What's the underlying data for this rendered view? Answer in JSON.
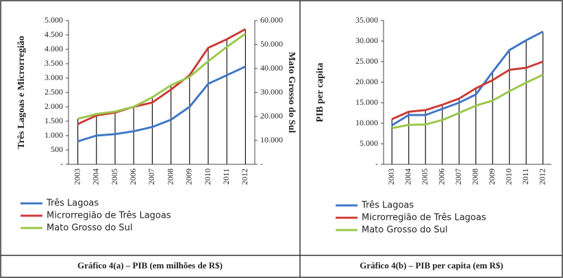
{
  "chart_data": [
    {
      "type": "line",
      "title": "Gráfico 4(a) – PIB (em milhões de R$)",
      "y_label": "Três Lagoas e Microrregião",
      "y2_label": "Mato Grosso do Sul",
      "categories": [
        "2003",
        "2004",
        "2005",
        "2006",
        "2007",
        "2008",
        "2009",
        "2010",
        "2011",
        "2012"
      ],
      "series": [
        {
          "name": "Três Lagoas",
          "color": "#3f76c6",
          "values": [
            800,
            1000,
            1050,
            1150,
            1300,
            1550,
            2000,
            2800,
            3100,
            3400
          ]
        },
        {
          "name": "Microrregião de Três Lagoas",
          "color": "#cc3a34",
          "values": [
            1400,
            1700,
            1800,
            2000,
            2150,
            2600,
            3100,
            4050,
            4350,
            4700
          ]
        },
        {
          "name": "Mato Grosso do Sul",
          "color": "#9ac74a",
          "axis": "y2",
          "values": [
            19000,
            21000,
            22000,
            24000,
            28000,
            33000,
            36500,
            43000,
            49000,
            54500
          ]
        }
      ],
      "ylim": [
        0,
        5000
      ],
      "yticks": [
        {
          "value": 0,
          "label": "-"
        },
        500,
        {
          "value": 1000,
          "label": "1.000"
        },
        {
          "value": 1500,
          "label": "1.500"
        },
        {
          "value": 2000,
          "label": "2.000"
        },
        {
          "value": 2500,
          "label": "2.500"
        },
        {
          "value": 3000,
          "label": "3.000"
        },
        {
          "value": 3500,
          "label": "3.500"
        },
        {
          "value": 4000,
          "label": "4.000"
        },
        {
          "value": 4500,
          "label": "4.500"
        },
        {
          "value": 5000,
          "label": "5.000"
        }
      ],
      "y2lim": [
        0,
        60000
      ],
      "y2ticks": [
        {
          "value": 0,
          "label": "-"
        },
        {
          "value": 10000,
          "label": "10.000"
        },
        {
          "value": 20000,
          "label": "20.000"
        },
        {
          "value": 30000,
          "label": "30.000"
        },
        {
          "value": 40000,
          "label": "40.000"
        },
        {
          "value": 50000,
          "label": "50.000"
        },
        {
          "value": 60000,
          "label": "60.000"
        }
      ],
      "drop_lines": true,
      "legend": "bottom-left"
    },
    {
      "type": "line",
      "title": "Gráfico 4(b) – PIB per capita (em R$)",
      "y_label": "PIB per capita",
      "categories": [
        "2003",
        "2004",
        "2005",
        "2006",
        "2007",
        "2008",
        "2009",
        "2010",
        "2011",
        "2012"
      ],
      "series": [
        {
          "name": "Três Lagoas",
          "color": "#3f76c6",
          "values": [
            9500,
            12000,
            12000,
            13500,
            15000,
            17000,
            22500,
            27800,
            30200,
            32300
          ]
        },
        {
          "name": "Microrregião de Três Lagoas",
          "color": "#cc3a34",
          "values": [
            11000,
            12800,
            13200,
            14500,
            16000,
            18500,
            20500,
            23000,
            23500,
            25000
          ]
        },
        {
          "name": "Mato Grosso do Sul",
          "color": "#9ac74a",
          "values": [
            8800,
            9600,
            9700,
            10800,
            12500,
            14300,
            15500,
            17800,
            19900,
            21800
          ]
        }
      ],
      "ylim": [
        0,
        35000
      ],
      "yticks": [
        {
          "value": 0,
          "label": "-"
        },
        {
          "value": 5000,
          "label": "5.000"
        },
        {
          "value": 10000,
          "label": "10.000"
        },
        {
          "value": 15000,
          "label": "15.000"
        },
        {
          "value": 20000,
          "label": "20.000"
        },
        {
          "value": 25000,
          "label": "25.000"
        },
        {
          "value": 30000,
          "label": "30.000"
        },
        {
          "value": 35000,
          "label": "35.000"
        }
      ],
      "drop_lines": true,
      "legend": "bottom-left"
    }
  ]
}
